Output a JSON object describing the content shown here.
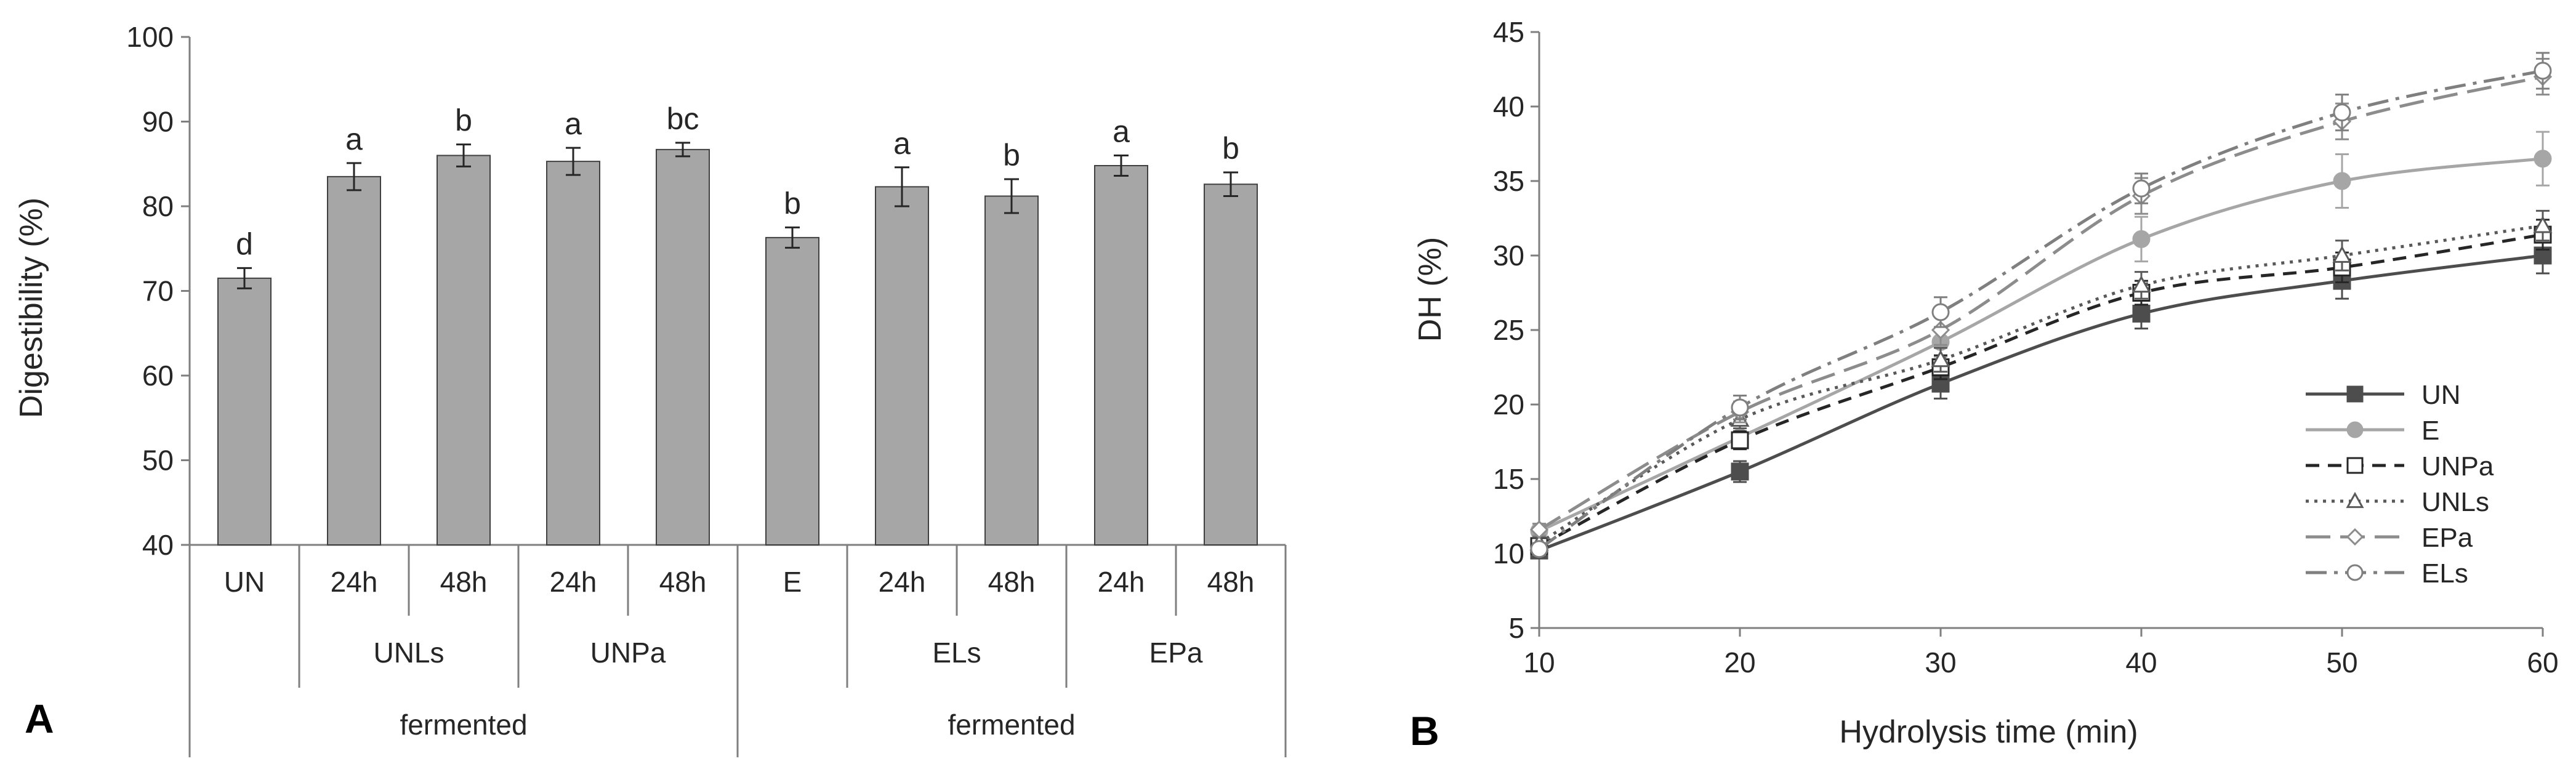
{
  "chart_data": [
    {
      "panel": "A",
      "type": "bar",
      "ylabel": "Digestibility (%)",
      "ylim": [
        40,
        100
      ],
      "yticks": [
        40,
        50,
        60,
        70,
        80,
        90,
        100
      ],
      "bars": [
        {
          "label": "UN",
          "value": 71.5,
          "error": 1.2,
          "sig": "d"
        },
        {
          "label": "24h",
          "value": 83.5,
          "error": 1.6,
          "sig": "a"
        },
        {
          "label": "48h",
          "value": 86.0,
          "error": 1.3,
          "sig": "b"
        },
        {
          "label": "24h",
          "value": 85.3,
          "error": 1.6,
          "sig": "a"
        },
        {
          "label": "48h",
          "value": 86.7,
          "error": 0.8,
          "sig": "bc"
        },
        {
          "label": "E",
          "value": 76.3,
          "error": 1.2,
          "sig": "b"
        },
        {
          "label": "24h",
          "value": 82.3,
          "error": 2.3,
          "sig": "a"
        },
        {
          "label": "48h",
          "value": 81.2,
          "error": 2.0,
          "sig": "b"
        },
        {
          "label": "24h",
          "value": 84.8,
          "error": 1.2,
          "sig": "a"
        },
        {
          "label": "48h",
          "value": 82.6,
          "error": 1.4,
          "sig": "b"
        }
      ],
      "groups": [
        {
          "label": "UNLs",
          "span": [
            1,
            2
          ]
        },
        {
          "label": "UNPa",
          "span": [
            3,
            4
          ]
        },
        {
          "label": "ELs",
          "span": [
            6,
            7
          ]
        },
        {
          "label": "EPa",
          "span": [
            8,
            9
          ]
        }
      ],
      "supergroups": [
        {
          "label": "fermented",
          "span": [
            0,
            4
          ]
        },
        {
          "label": "fermented",
          "span": [
            5,
            9
          ]
        }
      ],
      "bar_color": "#a6a6a6"
    },
    {
      "panel": "B",
      "type": "line",
      "xlabel": "Hydrolysis time (min)",
      "ylabel": "DH (%)",
      "xlim": [
        10,
        60
      ],
      "ylim": [
        5,
        45
      ],
      "xticks": [
        10,
        20,
        30,
        40,
        50,
        60
      ],
      "yticks": [
        5,
        10,
        15,
        20,
        25,
        30,
        35,
        40,
        45
      ],
      "x": [
        10,
        20,
        30,
        40,
        50,
        60
      ],
      "legend_position": "bottom-right",
      "series": [
        {
          "name": "UN",
          "values": [
            10.2,
            15.5,
            21.4,
            26.1,
            28.3,
            30.0
          ],
          "errors": [
            0.5,
            0.7,
            1.0,
            1.0,
            1.2,
            1.2
          ],
          "color": "#4d4d4d",
          "dash": "solid",
          "marker": "square-filled"
        },
        {
          "name": "E",
          "values": [
            11.5,
            17.8,
            24.2,
            31.1,
            35.0,
            36.5
          ],
          "errors": [
            0.5,
            0.8,
            1.0,
            1.5,
            1.8,
            1.8
          ],
          "color": "#a6a6a6",
          "dash": "solid",
          "marker": "circle-filled"
        },
        {
          "name": "UNPa",
          "values": [
            10.5,
            17.6,
            22.5,
            27.5,
            29.2,
            31.4
          ],
          "errors": [
            0.4,
            0.6,
            0.8,
            0.8,
            1.0,
            1.0
          ],
          "color": "#262626",
          "dash": "dashed",
          "marker": "square-open"
        },
        {
          "name": "UNLs",
          "values": [
            10.7,
            19.0,
            23.0,
            28.0,
            30.0,
            32.0
          ],
          "errors": [
            0.4,
            0.6,
            0.8,
            0.9,
            1.0,
            1.0
          ],
          "color": "#595959",
          "dash": "dotted",
          "marker": "triangle-open"
        },
        {
          "name": "EPa",
          "values": [
            11.6,
            19.5,
            25.0,
            34.0,
            39.0,
            42.0
          ],
          "errors": [
            0.4,
            0.7,
            1.0,
            1.2,
            1.2,
            1.2
          ],
          "color": "#8c8c8c",
          "dash": "longdash",
          "marker": "diamond-open"
        },
        {
          "name": "ELs",
          "values": [
            10.3,
            19.8,
            26.2,
            34.5,
            39.6,
            42.4
          ],
          "errors": [
            0.4,
            0.8,
            1.0,
            1.0,
            1.2,
            1.2
          ],
          "color": "#7f7f7f",
          "dash": "dashdot",
          "marker": "circle-open"
        }
      ]
    }
  ]
}
